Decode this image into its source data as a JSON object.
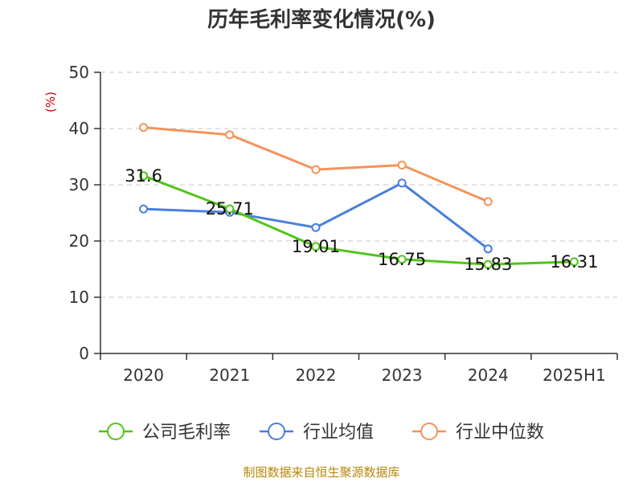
{
  "chart_data": {
    "type": "line",
    "title": "历年毛利率变化情况(%)",
    "ylabel": "(%)",
    "xlabel": "",
    "categories": [
      "2020",
      "2021",
      "2022",
      "2023",
      "2024",
      "2025H1"
    ],
    "ylim": [
      0,
      50
    ],
    "yticks": [
      0,
      10,
      20,
      30,
      40,
      50
    ],
    "grid": true,
    "legend_position": "bottom",
    "series": [
      {
        "name": "公司毛利率",
        "color": "#52c41a",
        "values": [
          31.6,
          25.71,
          19.01,
          16.75,
          15.83,
          16.31
        ],
        "labels": [
          "31.6",
          "25.71",
          "19.01",
          "16.75",
          "15.83",
          "16.31"
        ]
      },
      {
        "name": "行业均值",
        "color": "#4a7fdc",
        "values": [
          25.7,
          25.1,
          22.4,
          30.3,
          18.6,
          null
        ]
      },
      {
        "name": "行业中位数",
        "color": "#f5935a",
        "values": [
          40.2,
          38.9,
          32.7,
          33.5,
          27.0,
          null
        ]
      }
    ],
    "source": "制图数据来自恒生聚源数据库"
  }
}
